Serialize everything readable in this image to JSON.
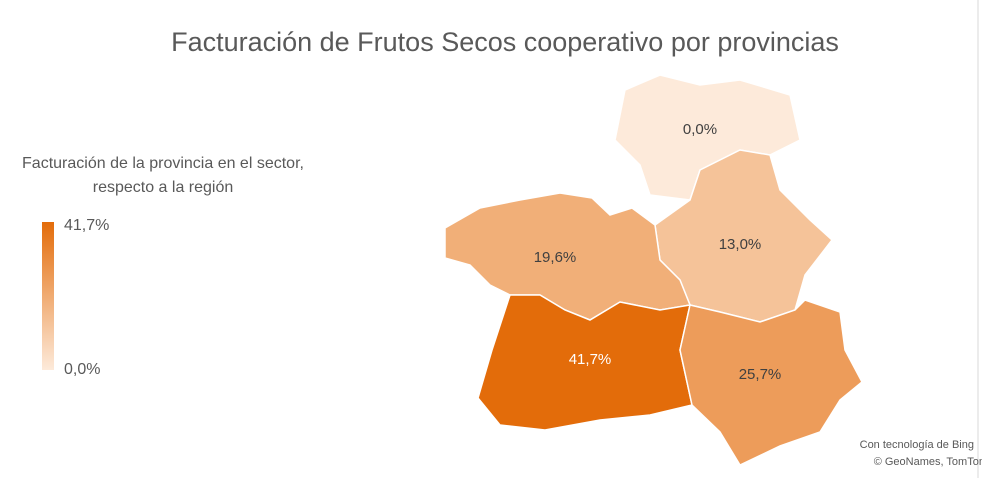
{
  "chart_data": {
    "type": "choropleth",
    "title": "Facturación de Frutos Secos cooperativo por provincias",
    "legend_title": "Facturación de la provincia en el sector, respecto a la región",
    "scale": {
      "min": 0,
      "max": 41.7,
      "min_label": "0,0%",
      "max_label": "41,7%",
      "color_min": "#fdeada",
      "color_max": "#e36c0a"
    },
    "values": [
      0,
      13,
      19.6,
      41.7,
      25.7
    ],
    "value_labels": [
      "0,0%",
      "13,0%",
      "19,6%",
      "41,7%",
      "25,7%"
    ],
    "attribution": [
      "Con tecnología de Bing",
      "© GeoNames, TomTom"
    ]
  }
}
